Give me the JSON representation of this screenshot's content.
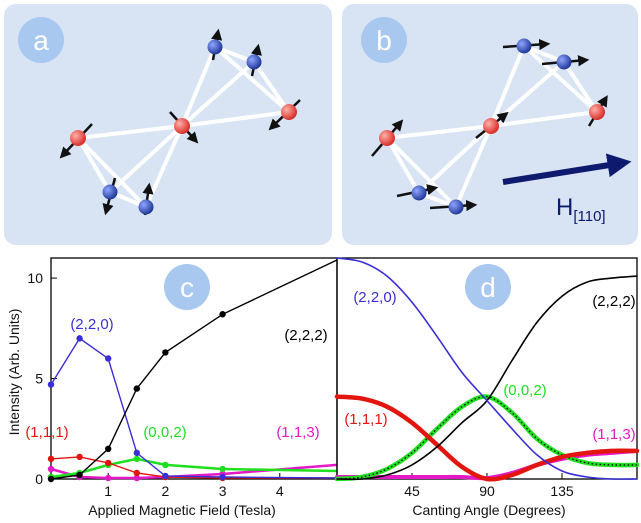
{
  "panels": {
    "a": {
      "letter": "a"
    },
    "b": {
      "letter": "b",
      "field_label": "H",
      "field_subscript": "[110]"
    },
    "c": {
      "letter": "c"
    },
    "d": {
      "letter": "d"
    }
  },
  "colors": {
    "panel_bg": "#d8e3f4",
    "badge": "#a9c8f0",
    "rod": "#ffffff",
    "atom_red": "#e8413a",
    "atom_blue": "#2f4fb8",
    "arrow": "#111111",
    "field_arrow": "#0d1a6e",
    "s220": "#3a2fd6",
    "s222": "#000000",
    "s111": "#e3150f",
    "s002": "#1ee01e",
    "s113": "#e419c6"
  },
  "chart_data": [
    {
      "type": "line",
      "panel": "c",
      "xlabel": "Applied Magnetic Field (Tesla)",
      "ylabel": "Intensity (Arb. Units)",
      "xlim": [
        0,
        5
      ],
      "ylim": [
        0,
        11
      ],
      "xticks": [
        "1",
        "2",
        "3",
        "4"
      ],
      "yticks": [
        "0",
        "5",
        "10"
      ],
      "series": [
        {
          "name": "(2,2,2)",
          "color": "#000000",
          "x": [
            0,
            0.5,
            1,
            1.5,
            2,
            3,
            5
          ],
          "y": [
            0,
            0.2,
            1.5,
            4.5,
            6.3,
            8.2,
            10.9
          ]
        },
        {
          "name": "(2,2,0)",
          "color": "#3a2fd6",
          "x": [
            0,
            0.5,
            1,
            1.5,
            2,
            3,
            5
          ],
          "y": [
            4.7,
            7.0,
            6.0,
            1.3,
            0.15,
            0.1,
            0.05
          ]
        },
        {
          "name": "(1,1,1)",
          "color": "#e3150f",
          "x": [
            0,
            0.5,
            1,
            1.5,
            2,
            3,
            5
          ],
          "y": [
            1.0,
            1.1,
            0.8,
            0.3,
            0.1,
            0.05,
            0.05
          ]
        },
        {
          "name": "(0,0,2)",
          "color": "#1ee01e",
          "x": [
            0,
            0.5,
            1,
            1.5,
            2,
            3,
            5
          ],
          "y": [
            0.1,
            0.3,
            0.7,
            1.0,
            0.7,
            0.5,
            0.4
          ]
        },
        {
          "name": "(1,1,3)",
          "color": "#e419c6",
          "x": [
            0,
            0.5,
            1,
            1.5,
            2,
            3,
            5
          ],
          "y": [
            0.5,
            0.1,
            0.05,
            0.05,
            0.1,
            0.25,
            0.7
          ]
        }
      ]
    },
    {
      "type": "line",
      "panel": "d",
      "xlabel": "Canting Angle (Degrees)",
      "xlim": [
        0,
        180
      ],
      "ylim": [
        0,
        11
      ],
      "xticks": [
        "45",
        "90",
        "135"
      ],
      "series": [
        {
          "name": "(2,2,0)",
          "color": "#3a2fd6",
          "x": [
            0,
            15,
            30,
            45,
            60,
            75,
            90,
            105,
            120,
            135,
            150,
            165,
            180
          ],
          "y": [
            11.0,
            10.8,
            10.1,
            8.8,
            7.1,
            5.3,
            3.9,
            2.5,
            1.2,
            0.4,
            0.1,
            0.0,
            0.0
          ]
        },
        {
          "name": "(2,2,2)",
          "color": "#000000",
          "x": [
            0,
            15,
            30,
            45,
            60,
            75,
            90,
            105,
            120,
            135,
            150,
            165,
            180
          ],
          "y": [
            0.0,
            0.0,
            0.2,
            0.7,
            1.6,
            2.8,
            3.9,
            5.9,
            7.8,
            9.1,
            9.8,
            10.0,
            10.1
          ]
        },
        {
          "name": "(1,1,1)",
          "color": "#e3150f",
          "x": [
            0,
            15,
            30,
            45,
            60,
            75,
            90,
            105,
            120,
            135,
            150,
            165,
            180
          ],
          "y": [
            4.1,
            4.0,
            3.6,
            2.8,
            1.7,
            0.6,
            0.0,
            0.2,
            0.7,
            1.1,
            1.3,
            1.4,
            1.4
          ]
        },
        {
          "name": "(0,0,2)",
          "color": "#1ee01e",
          "x": [
            0,
            15,
            30,
            45,
            60,
            75,
            90,
            105,
            120,
            135,
            150,
            165,
            180
          ],
          "y": [
            0.0,
            0.1,
            0.5,
            1.3,
            2.5,
            3.6,
            4.1,
            3.3,
            2.0,
            1.2,
            0.8,
            0.7,
            0.7
          ]
        },
        {
          "name": "(1,1,3)",
          "color": "#e419c6",
          "x": [
            0,
            15,
            30,
            45,
            60,
            75,
            90,
            105,
            120,
            135,
            150,
            165,
            180
          ],
          "y": [
            0.1,
            0.1,
            0.1,
            0.1,
            0.1,
            0.1,
            0.05,
            0.3,
            0.7,
            1.0,
            1.2,
            1.3,
            1.4
          ]
        }
      ]
    }
  ]
}
